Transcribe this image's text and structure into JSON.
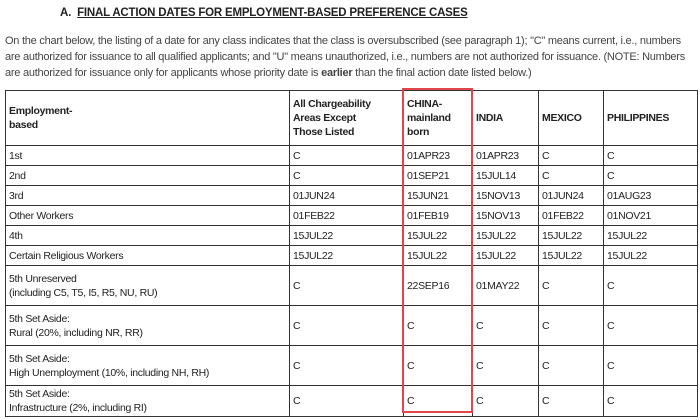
{
  "header": {
    "label": "A.",
    "title": "FINAL ACTION DATES FOR EMPLOYMENT-BASED PREFERENCE CASES"
  },
  "intro": {
    "before": "On the chart below, the listing of a date for any class indicates that the class is oversubscribed (see paragraph 1); \"C\" means current, i.e., numbers are authorized for issuance to all qualified applicants; and \"U\" means unauthorized, i.e., numbers are not authorized for issuance. (NOTE: Numbers are authorized for issuance only for applicants whose priority date is ",
    "bold": "earlier",
    "after": " than the final action date listed below.)"
  },
  "table": {
    "columns": [
      "Employment-\nbased",
      "All Chargeability\nAreas Except\nThose Listed",
      "CHINA-\nmainland\nborn",
      "INDIA",
      "MEXICO",
      "PHILIPPINES"
    ],
    "rows": [
      [
        "1st",
        "C",
        "01APR23",
        "01APR23",
        "C",
        "C"
      ],
      [
        "2nd",
        "C",
        "01SEP21",
        "15JUL14",
        "C",
        "C"
      ],
      [
        "3rd",
        "01JUN24",
        "15JUN21",
        "15NOV13",
        "01JUN24",
        "01AUG23"
      ],
      [
        "Other Workers",
        "01FEB22",
        "01FEB19",
        "15NOV13",
        "01FEB22",
        "01NOV21"
      ],
      [
        "4th",
        "15JUL22",
        "15JUL22",
        "15JUL22",
        "15JUL22",
        "15JUL22"
      ],
      [
        "Certain Religious Workers",
        "15JUL22",
        "15JUL22",
        "15JUL22",
        "15JUL22",
        "15JUL22"
      ],
      [
        "5th Unreserved\n(including C5, T5, I5, R5, NU, RU)",
        "C",
        "22SEP16",
        "01MAY22",
        "C",
        "C"
      ],
      [
        "5th Set Aside:\nRural (20%, including NR, RR)",
        "C",
        "C",
        "C",
        "C",
        "C"
      ],
      [
        "5th Set Aside:\nHigh Unemployment (10%, including NH, RH)",
        "C",
        "C",
        "C",
        "C",
        "C"
      ],
      [
        "5th Set Aside:\nInfrastructure (2%, including RI)",
        "C",
        "C",
        "C",
        "C",
        "C"
      ]
    ]
  }
}
